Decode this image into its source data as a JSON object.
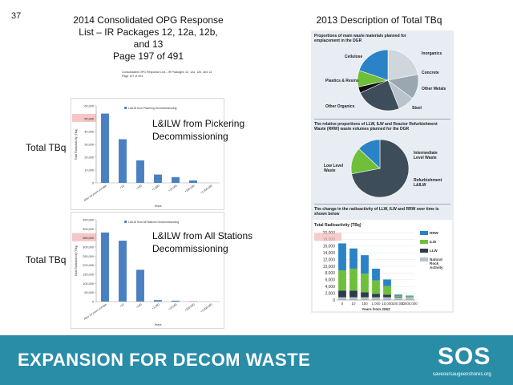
{
  "slide_number": "37",
  "left_heading": {
    "line1": "2014 Consolidated OPG Response",
    "line2": "List – IR Packages 12, 12a, 12b,",
    "line3": "and 13",
    "page": "Page 197 of 491"
  },
  "right_heading": "2013 Description of Total TBq",
  "small_caption": {
    "line1": "Consolidated OPG Response List – IR Packages 12, 12a, 12b, and 13",
    "line2": "Page 197 of 491"
  },
  "row_labels": {
    "top": "Total TBq",
    "bottom": "Total TBq"
  },
  "chart_labels": {
    "top": {
      "line1": "L&ILW from Pickering",
      "line2": "Decommissioning"
    },
    "bottom": {
      "line1": "L&ILW from All Stations",
      "line2": "Decommissioning"
    }
  },
  "info_panel": {
    "pie1_title": "Proportions of main waste materials planned for emplacement in the DGR",
    "pie1_labels": [
      "Cellulose",
      "Inorganics",
      "Concrete",
      "Other Metals",
      "Steel",
      "Other Organics",
      "Plastics & Resins"
    ],
    "pie2_title": "The relative proportions of LLW, ILW and Reactor Refurbishment Waste (RRW) waste volumes planned for the DGR",
    "pie2_labels": [
      "Intermediate Level Waste",
      "Low Level Waste",
      "Refurbishment L&ILW"
    ],
    "bar_intro": "The change in the radioactivity of LLW, ILW and RRW over time is shown below"
  },
  "footer": {
    "title": "EXPANSION FOR DECOM WASTE",
    "logo": "SOS",
    "url": "saveoursaugeenshores.org"
  },
  "chart_data": [
    {
      "type": "bar",
      "title": "",
      "legend": [
        "L&ILW from Pickering Decommissioning"
      ],
      "ylabel": "Total Radioactivity (TBq)",
      "xlabel": "Years",
      "y_ticks": [
        "0",
        "10,000",
        "20,000",
        "30,000",
        "40,000",
        "50,000",
        "60,000"
      ],
      "ylim": [
        0,
        60000
      ],
      "categories": [
        "After 10 years storage",
        "+10",
        "+100",
        "+1,000",
        "+10,000",
        "+100,000",
        "+1,000,000"
      ],
      "values": [
        54000,
        34000,
        17500,
        6500,
        4500,
        1900,
        0
      ]
    },
    {
      "type": "bar",
      "title": "",
      "legend": [
        "L&ILW from All Stations Decommissioning"
      ],
      "ylabel": "Total Radioactivity (TBq)",
      "xlabel": "Years",
      "y_ticks": [
        "0",
        "50,000",
        "100,000",
        "150,000",
        "200,000",
        "250,000",
        "300,000",
        "350,000",
        "400,000",
        "450,000"
      ],
      "ylim": [
        0,
        450000
      ],
      "categories": [
        "After 10 years storage",
        "+10",
        "+100",
        "+1,000",
        "+10,000",
        "+100,000",
        "+1,000,000"
      ],
      "values": [
        380000,
        335000,
        175000,
        8000,
        5000,
        1500,
        0
      ]
    },
    {
      "type": "bar",
      "stacked": true,
      "title": "Total Radioactivity (TBq)",
      "xlabel": "Years from 2062",
      "ylabel": "",
      "y_ticks": [
        "0",
        "2,000",
        "4,000",
        "6,000",
        "8,000",
        "10,000",
        "12,000",
        "14,000",
        "16,000",
        "18,000",
        "20,000"
      ],
      "ylim": [
        0,
        20000
      ],
      "categories": [
        "0",
        "10",
        "100",
        "1,000",
        "10,000",
        "100,000",
        "1,000,000"
      ],
      "legend_position": "right",
      "series": [
        {
          "name": "RRW",
          "color": "#2a83c6",
          "values": [
            8000,
            6000,
            5500,
            3500,
            2000,
            300,
            200
          ]
        },
        {
          "name": "ILW",
          "color": "#6fbf3a",
          "values": [
            6000,
            6500,
            5500,
            4000,
            2500,
            300,
            200
          ]
        },
        {
          "name": "LLW",
          "color": "#2d3d4a",
          "values": [
            2000,
            2000,
            1500,
            1000,
            800,
            200,
            100
          ]
        },
        {
          "name": "Natural Rock Activity",
          "color": "#b9c3cc",
          "values": [
            800,
            800,
            800,
            800,
            800,
            800,
            800
          ]
        }
      ]
    }
  ],
  "colors": {
    "footer_bg": "#2a8da8",
    "bar_blue": "#4a7fc1",
    "highlight": "#f2b8b8",
    "panel_bg": "#e7edf3"
  }
}
